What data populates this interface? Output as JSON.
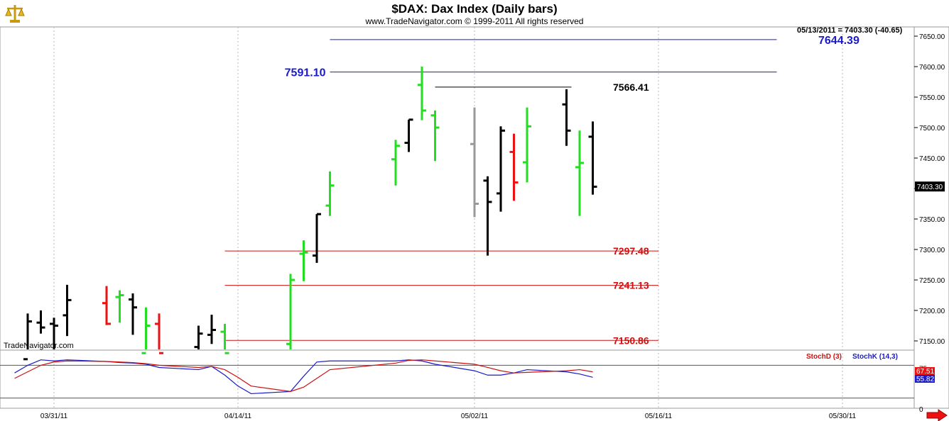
{
  "header": {
    "title": "$DAX:  Dax Index  (Daily bars)",
    "copyright": "www.TradeNavigator.com © 1999-2011 All rights reserved",
    "watermark": "TradeNavigator.com",
    "logo_icon": "scales-of-justice-icon"
  },
  "colors": {
    "up": "#22dd22",
    "down": "#ee1111",
    "neutral": "#000000",
    "gray": "#999999",
    "blue_level": "#1a1acc",
    "red_level": "#cc1111",
    "stoch_d": "#cc1111",
    "stoch_k": "#1a1acc",
    "current_price_bg": "#000000",
    "stoch_d_tag_bg": "#ee1111",
    "stoch_k_tag_bg": "#1a1acc",
    "arrow": "#ee1111"
  },
  "chart_data": {
    "type": "ohlc",
    "quote": "05/13/2011 = 7403.30 (-40.65)",
    "current_price_label": "7403.30",
    "ylim": [
      7125,
      7680
    ],
    "y_ticks": [
      7150,
      7200,
      7250,
      7300,
      7350,
      7400,
      7450,
      7500,
      7550,
      7600,
      7650
    ],
    "y_tick_labels": [
      "7150.00",
      "7200.00",
      "7250.00",
      "7300.00",
      "7350.00",
      "7400.00",
      "7450.00",
      "7500.00",
      "7550.00",
      "7600.00",
      "7650.00"
    ],
    "x_ticks": [
      {
        "date": "2011-03-31",
        "label": "03/31/11"
      },
      {
        "date": "2011-04-14",
        "label": "04/14/11"
      },
      {
        "date": "2011-05-02",
        "label": "05/02/11"
      },
      {
        "date": "2011-05-16",
        "label": "05/16/11"
      },
      {
        "date": "2011-05-30",
        "label": "05/30/11"
      }
    ],
    "xlim": [
      "2011-03-28",
      "2011-06-08"
    ],
    "bars": [
      {
        "date": "2011-03-29",
        "open": 7120,
        "high": 7195,
        "low": 7110,
        "close": 7182,
        "color": "neutral"
      },
      {
        "date": "2011-03-30",
        "open": 7180,
        "high": 7200,
        "low": 7162,
        "close": 7172,
        "color": "neutral"
      },
      {
        "date": "2011-03-31",
        "open": 7178,
        "high": 7188,
        "low": 7128,
        "close": 7175,
        "color": "neutral"
      },
      {
        "date": "2011-04-01",
        "open": 7192,
        "high": 7242,
        "low": 7158,
        "close": 7217,
        "color": "neutral"
      },
      {
        "date": "2011-04-04",
        "open": 7212,
        "high": 7240,
        "low": 7176,
        "close": 7178,
        "color": "down"
      },
      {
        "date": "2011-04-05",
        "open": 7222,
        "high": 7233,
        "low": 7180,
        "close": 7225,
        "color": "up"
      },
      {
        "date": "2011-04-06",
        "open": 7218,
        "high": 7228,
        "low": 7160,
        "close": 7205,
        "color": "neutral"
      },
      {
        "date": "2011-04-07",
        "open": 7130,
        "high": 7205,
        "low": 7110,
        "close": 7175,
        "color": "up"
      },
      {
        "date": "2011-04-08",
        "open": 7178,
        "high": 7195,
        "low": 7110,
        "close": 7130,
        "color": "down"
      },
      {
        "date": "2011-04-11",
        "open": 7140,
        "high": 7175,
        "low": 7100,
        "close": 7162,
        "color": "neutral"
      },
      {
        "date": "2011-04-12",
        "open": 7160,
        "high": 7193,
        "low": 7145,
        "close": 7168,
        "color": "neutral"
      },
      {
        "date": "2011-04-13",
        "open": 7165,
        "high": 7178,
        "low": 7090,
        "close": 7130,
        "color": "up"
      },
      {
        "date": "2011-04-18",
        "open": 7145,
        "high": 7260,
        "low": 7133,
        "close": 7250,
        "color": "up"
      },
      {
        "date": "2011-04-19",
        "open": 7293,
        "high": 7315,
        "low": 7248,
        "close": 7295,
        "color": "up"
      },
      {
        "date": "2011-04-20",
        "open": 7290,
        "high": 7358,
        "low": 7278,
        "close": 7358,
        "color": "neutral"
      },
      {
        "date": "2011-04-21",
        "open": 7372,
        "high": 7428,
        "low": 7355,
        "close": 7405,
        "color": "up"
      },
      {
        "date": "2011-04-26",
        "open": 7448,
        "high": 7480,
        "low": 7405,
        "close": 7470,
        "color": "up"
      },
      {
        "date": "2011-04-27",
        "open": 7475,
        "high": 7513,
        "low": 7460,
        "close": 7513,
        "color": "neutral"
      },
      {
        "date": "2011-04-28",
        "open": 7570,
        "high": 7600,
        "low": 7512,
        "close": 7528,
        "color": "up"
      },
      {
        "date": "2011-04-29",
        "open": 7520,
        "high": 7528,
        "low": 7445,
        "close": 7500,
        "color": "up"
      },
      {
        "date": "2011-05-02",
        "open": 7473,
        "high": 7533,
        "low": 7353,
        "close": 7375,
        "color": "gray"
      },
      {
        "date": "2011-05-03",
        "open": 7413,
        "high": 7420,
        "low": 7290,
        "close": 7378,
        "color": "neutral"
      },
      {
        "date": "2011-05-04",
        "open": 7392,
        "high": 7502,
        "low": 7362,
        "close": 7495,
        "color": "neutral"
      },
      {
        "date": "2011-05-05",
        "open": 7460,
        "high": 7490,
        "low": 7380,
        "close": 7410,
        "color": "down"
      },
      {
        "date": "2011-05-06",
        "open": 7443,
        "high": 7533,
        "low": 7410,
        "close": 7502,
        "color": "up"
      },
      {
        "date": "2011-05-09",
        "open": 7538,
        "high": 7563,
        "low": 7470,
        "close": 7495,
        "color": "neutral"
      },
      {
        "date": "2011-05-10",
        "open": 7435,
        "high": 7495,
        "low": 7355,
        "close": 7442,
        "color": "up"
      },
      {
        "date": "2011-05-11",
        "open": 7485,
        "high": 7510,
        "low": 7390,
        "close": 7403,
        "color": "neutral"
      }
    ],
    "levels": [
      {
        "value": 7644.39,
        "label": "7644.39",
        "color": "blue",
        "from": "2011-04-21",
        "to": "2011-05-25"
      },
      {
        "value": 7591.1,
        "label": "7591.10",
        "color": "blue",
        "from": "2011-04-21",
        "to": "2011-05-25"
      },
      {
        "value": 7566.41,
        "label": "7566.41",
        "color": "black",
        "from": "2011-04-29",
        "to": "2011-05-09"
      },
      {
        "value": 7297.48,
        "label": "7297.48",
        "color": "red",
        "from": "2011-04-13",
        "to": "2011-05-16"
      },
      {
        "value": 7241.13,
        "label": "7241.13",
        "color": "red",
        "from": "2011-04-13",
        "to": "2011-05-16"
      },
      {
        "value": 7150.86,
        "label": "7150.86",
        "color": "red",
        "from": "2011-04-13",
        "to": "2011-05-16"
      }
    ],
    "stochastic": {
      "legend_d": "StochD (3)",
      "legend_k": "StochK (14,3)",
      "ylim": [
        0,
        100
      ],
      "y_ticks": [
        0,
        75
      ],
      "y_tick_labels": [
        "0",
        "75"
      ],
      "lines": [
        20,
        80
      ],
      "value_d": "67.51",
      "value_k": "55.82",
      "dates": [
        "2011-03-24",
        "2011-03-25",
        "2011-03-28",
        "2011-03-29",
        "2011-03-30",
        "2011-03-31",
        "2011-04-01",
        "2011-04-04",
        "2011-04-05",
        "2011-04-06",
        "2011-04-07",
        "2011-04-08",
        "2011-04-11",
        "2011-04-12",
        "2011-04-13",
        "2011-04-14",
        "2011-04-15",
        "2011-04-18",
        "2011-04-19",
        "2011-04-20",
        "2011-04-21",
        "2011-04-26",
        "2011-04-27",
        "2011-04-28",
        "2011-04-29",
        "2011-05-02",
        "2011-05-03",
        "2011-05-04",
        "2011-05-05",
        "2011-05-06",
        "2011-05-09",
        "2011-05-10",
        "2011-05-11"
      ],
      "d": [
        40,
        46,
        56,
        68,
        80,
        86,
        88,
        87,
        86,
        85,
        83,
        80,
        76,
        78,
        72,
        58,
        42,
        32,
        40,
        56,
        72,
        84,
        89,
        90,
        88,
        82,
        76,
        70,
        66,
        67,
        70,
        72,
        68
      ],
      "k": [
        48,
        52,
        66,
        80,
        90,
        88,
        90,
        87,
        85,
        84,
        82,
        76,
        72,
        78,
        62,
        42,
        28,
        32,
        60,
        86,
        88,
        88,
        90,
        88,
        82,
        70,
        62,
        62,
        66,
        72,
        68,
        64,
        58
      ]
    }
  }
}
